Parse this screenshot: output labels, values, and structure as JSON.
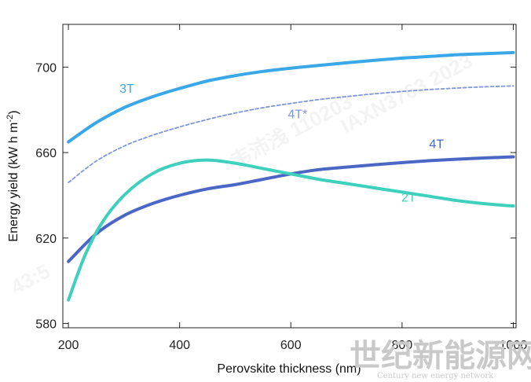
{
  "chart_data": {
    "type": "line",
    "xlabel": "Perovskite thickness (nm)",
    "ylabel": "Energy yield (kW h m",
    "ylabel_sup": "-2",
    "ylabel_close": ")",
    "xlim": [
      190,
      1005
    ],
    "ylim": [
      578,
      720
    ],
    "xticks": [
      200,
      400,
      600,
      800,
      1000
    ],
    "xtick_labels": [
      "200",
      "400",
      "600",
      "800",
      "1000"
    ],
    "yticks": [
      580,
      620,
      660,
      700
    ],
    "ytick_labels": [
      "580",
      "620",
      "660",
      "700"
    ],
    "grid": false,
    "series": [
      {
        "name": "3T",
        "color": "#3aa7e8",
        "style": "solid",
        "x": [
          200,
          250,
          300,
          350,
          400,
          450,
          500,
          550,
          600,
          650,
          700,
          750,
          800,
          850,
          900,
          950,
          1000
        ],
        "y": [
          665,
          674,
          681,
          686,
          690,
          693.5,
          696,
          698,
          699.5,
          700.8,
          702,
          703.2,
          704.2,
          705,
          705.8,
          706.3,
          706.8
        ]
      },
      {
        "name": "4T*",
        "color": "#7f97db",
        "style": "dashed",
        "x": [
          200,
          250,
          300,
          350,
          400,
          450,
          500,
          550,
          600,
          650,
          700,
          750,
          800,
          850,
          900,
          950,
          1000
        ],
        "y": [
          646,
          656,
          663,
          668,
          672,
          675.5,
          678.5,
          681,
          683,
          684.8,
          686.2,
          687.5,
          688.6,
          689.5,
          690.2,
          690.8,
          691.2
        ]
      },
      {
        "name": "4T",
        "color": "#4a67c6",
        "style": "solid",
        "x": [
          200,
          250,
          300,
          350,
          400,
          450,
          500,
          550,
          600,
          650,
          700,
          750,
          800,
          850,
          900,
          950,
          1000
        ],
        "y": [
          609,
          622,
          630.5,
          636,
          640,
          643,
          645,
          647.5,
          650,
          652,
          653.2,
          654.3,
          655.3,
          656.2,
          656.9,
          657.5,
          658
        ]
      },
      {
        "name": "2T",
        "color": "#3fd0bd",
        "style": "solid",
        "x": [
          200,
          230,
          260,
          300,
          350,
          400,
          450,
          500,
          550,
          600,
          650,
          700,
          750,
          800,
          850,
          900,
          950,
          1000
        ],
        "y": [
          591,
          612,
          627,
          640,
          650,
          655,
          656.5,
          655,
          652.5,
          650,
          647.5,
          645.5,
          643.5,
          641.5,
          639.5,
          637.5,
          636,
          635
        ]
      }
    ],
    "annotations": [
      {
        "text": "3T",
        "x": 305,
        "y": 688
      },
      {
        "text": "4T*",
        "x": 612,
        "y": 676
      },
      {
        "text": "4T",
        "x": 862,
        "y": 662
      },
      {
        "text": "2T",
        "x": 812,
        "y": 637
      }
    ]
  },
  "watermarks": {
    "diagonal_text": "IAXN3763 2023",
    "diagonal_text2": "韦沛浅 110203",
    "diagonal_text3": "43:5",
    "logo_main": "世纪新能源网",
    "logo_sub": "Century new energy network"
  }
}
